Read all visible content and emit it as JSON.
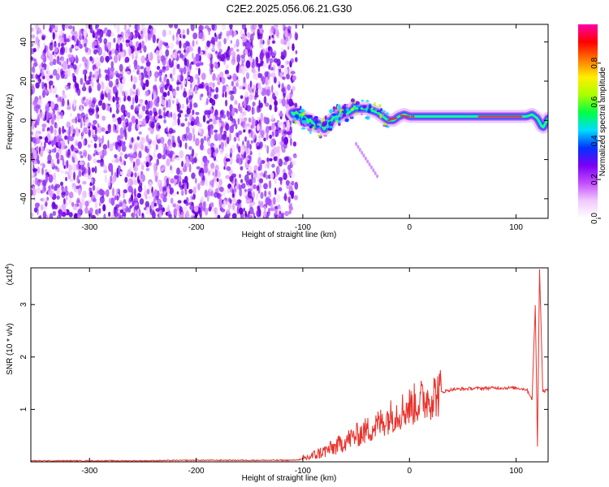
{
  "title": "C2E2.2025.056.06.21.G30",
  "chart_data": [
    {
      "type": "heatmap",
      "xlabel": "Height of straight line (km)",
      "ylabel": "Frequency (Hz)",
      "xlim": [
        -355,
        130
      ],
      "ylim": [
        -50,
        49
      ],
      "xticks": [
        -300,
        -200,
        -100,
        0,
        100
      ],
      "yticks": [
        -40,
        -20,
        0,
        20,
        40
      ],
      "colorbar": {
        "label": "Normalized spectral amplitude",
        "range": [
          0,
          1
        ],
        "ticks": [
          0.0,
          0.2,
          0.4,
          0.6,
          0.8
        ],
        "colormap": [
          "#ffffff",
          "#f1c9ff",
          "#c44dff",
          "#7a00f5",
          "#0033ff",
          "#00ddff",
          "#00ff44",
          "#aaff00",
          "#ffee00",
          "#ff7700",
          "#ff0000",
          "#ff00aa"
        ]
      },
      "signal_track": {
        "x": [
          -110,
          -100,
          -90,
          -80,
          -70,
          -60,
          -50,
          -40,
          -30,
          -20,
          -15,
          -10,
          -5,
          0,
          10,
          30,
          50,
          70,
          90,
          110,
          115,
          120,
          125,
          130
        ],
        "freq_hz": [
          4,
          1,
          -2,
          -4,
          2,
          4,
          6,
          6,
          4,
          0,
          0,
          2,
          3,
          2,
          2,
          2,
          2,
          2,
          2,
          2,
          3,
          1,
          -4,
          1
        ]
      }
    },
    {
      "type": "line",
      "xlabel": "Height of straight line (km)",
      "ylabel": "SNR (10 * v/v)",
      "yscale_label": "(x10",
      "yscale_exp": "4",
      "xlim": [
        -355,
        130
      ],
      "ylim": [
        0,
        3.7
      ],
      "xticks": [
        -300,
        -200,
        -100,
        0,
        100
      ],
      "yticks": [
        1,
        2,
        3
      ],
      "color": "#e8312a",
      "series": [
        {
          "x": [
            -355,
            -300,
            -250,
            -200,
            -150,
            -110,
            -100,
            -90,
            -80,
            -70,
            -60,
            -50,
            -40,
            -30,
            -20,
            -10,
            0,
            10,
            20,
            30,
            40,
            60,
            80,
            100,
            110,
            115,
            118,
            120,
            122,
            125,
            130
          ],
          "y": [
            0.02,
            0.02,
            0.02,
            0.03,
            0.03,
            0.03,
            0.05,
            0.12,
            0.2,
            0.28,
            0.4,
            0.5,
            0.6,
            0.7,
            0.85,
            0.95,
            1.05,
            1.15,
            1.25,
            1.33,
            1.38,
            1.4,
            1.41,
            1.41,
            1.38,
            1.2,
            3.0,
            0.3,
            3.7,
            1.35,
            1.37
          ]
        }
      ]
    }
  ]
}
